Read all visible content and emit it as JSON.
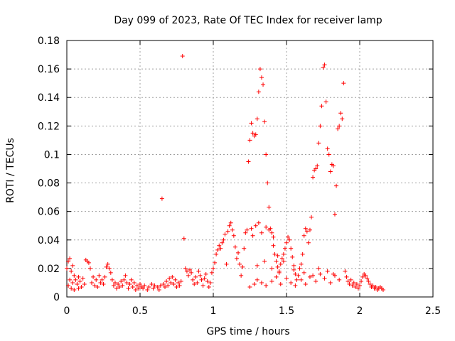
{
  "chart_data": {
    "type": "scatter",
    "title": "Day 099 of 2023, Rate Of TEC Index for receiver lamp",
    "xlabel": "GPS time / hours",
    "ylabel": "ROTI / TECUs",
    "xlim": [
      0,
      2.5
    ],
    "ylim": [
      0,
      0.18
    ],
    "x_ticks": [
      0,
      0.5,
      1,
      1.5,
      2,
      2.5
    ],
    "x_tick_labels": [
      "0",
      "0.5",
      "1",
      "1.5",
      "2",
      "2.5"
    ],
    "y_ticks": [
      0,
      0.02,
      0.04,
      0.06,
      0.08,
      0.1,
      0.12,
      0.14,
      0.16,
      0.18
    ],
    "y_tick_labels": [
      "0",
      "0.02",
      "0.04",
      "0.06",
      "0.08",
      "0.1",
      "0.12",
      "0.14",
      "0.16",
      "0.18"
    ],
    "grid": true,
    "marker": "+",
    "color": "#ff0000",
    "series": [
      {
        "name": "ROTI",
        "points": [
          [
            0.0,
            0.02
          ],
          [
            0.01,
            0.025
          ],
          [
            0.01,
            0.008
          ],
          [
            0.02,
            0.027
          ],
          [
            0.02,
            0.012
          ],
          [
            0.03,
            0.018
          ],
          [
            0.03,
            0.006
          ],
          [
            0.04,
            0.022
          ],
          [
            0.04,
            0.01
          ],
          [
            0.05,
            0.015
          ],
          [
            0.05,
            0.005
          ],
          [
            0.06,
            0.012
          ],
          [
            0.07,
            0.009
          ],
          [
            0.08,
            0.014
          ],
          [
            0.08,
            0.006
          ],
          [
            0.09,
            0.011
          ],
          [
            0.1,
            0.007
          ],
          [
            0.11,
            0.013
          ],
          [
            0.12,
            0.009
          ],
          [
            0.13,
            0.026
          ],
          [
            0.14,
            0.025
          ],
          [
            0.15,
            0.024
          ],
          [
            0.16,
            0.02
          ],
          [
            0.17,
            0.01
          ],
          [
            0.18,
            0.014
          ],
          [
            0.19,
            0.008
          ],
          [
            0.2,
            0.012
          ],
          [
            0.21,
            0.007
          ],
          [
            0.22,
            0.015
          ],
          [
            0.23,
            0.01
          ],
          [
            0.24,
            0.012
          ],
          [
            0.25,
            0.009
          ],
          [
            0.26,
            0.014
          ],
          [
            0.27,
            0.021
          ],
          [
            0.28,
            0.023
          ],
          [
            0.29,
            0.02
          ],
          [
            0.3,
            0.017
          ],
          [
            0.31,
            0.012
          ],
          [
            0.32,
            0.008
          ],
          [
            0.33,
            0.01
          ],
          [
            0.34,
            0.006
          ],
          [
            0.35,
            0.009
          ],
          [
            0.36,
            0.007
          ],
          [
            0.37,
            0.011
          ],
          [
            0.38,
            0.008
          ],
          [
            0.39,
            0.012
          ],
          [
            0.4,
            0.015
          ],
          [
            0.41,
            0.01
          ],
          [
            0.42,
            0.006
          ],
          [
            0.43,
            0.009
          ],
          [
            0.44,
            0.012
          ],
          [
            0.45,
            0.007
          ],
          [
            0.46,
            0.01
          ],
          [
            0.47,
            0.005
          ],
          [
            0.48,
            0.008
          ],
          [
            0.49,
            0.006
          ],
          [
            0.5,
            0.009
          ],
          [
            0.51,
            0.007
          ],
          [
            0.52,
            0.006
          ],
          [
            0.53,
            0.008
          ],
          [
            0.55,
            0.005
          ],
          [
            0.56,
            0.007
          ],
          [
            0.58,
            0.009
          ],
          [
            0.59,
            0.006
          ],
          [
            0.6,
            0.008
          ],
          [
            0.62,
            0.007
          ],
          [
            0.63,
            0.005
          ],
          [
            0.64,
            0.008
          ],
          [
            0.65,
            0.069
          ],
          [
            0.66,
            0.009
          ],
          [
            0.67,
            0.007
          ],
          [
            0.68,
            0.011
          ],
          [
            0.69,
            0.008
          ],
          [
            0.7,
            0.013
          ],
          [
            0.71,
            0.01
          ],
          [
            0.72,
            0.014
          ],
          [
            0.73,
            0.009
          ],
          [
            0.74,
            0.012
          ],
          [
            0.75,
            0.007
          ],
          [
            0.76,
            0.01
          ],
          [
            0.77,
            0.008
          ],
          [
            0.78,
            0.011
          ],
          [
            0.79,
            0.169
          ],
          [
            0.8,
            0.041
          ],
          [
            0.81,
            0.02
          ],
          [
            0.82,
            0.018
          ],
          [
            0.83,
            0.015
          ],
          [
            0.84,
            0.019
          ],
          [
            0.85,
            0.017
          ],
          [
            0.86,
            0.012
          ],
          [
            0.87,
            0.009
          ],
          [
            0.88,
            0.014
          ],
          [
            0.89,
            0.01
          ],
          [
            0.9,
            0.018
          ],
          [
            0.91,
            0.015
          ],
          [
            0.92,
            0.012
          ],
          [
            0.93,
            0.008
          ],
          [
            0.94,
            0.013
          ],
          [
            0.95,
            0.016
          ],
          [
            0.96,
            0.011
          ],
          [
            0.97,
            0.007
          ],
          [
            0.98,
            0.01
          ],
          [
            0.99,
            0.017
          ],
          [
            1.0,
            0.02
          ],
          [
            1.01,
            0.024
          ],
          [
            1.02,
            0.03
          ],
          [
            1.03,
            0.033
          ],
          [
            1.04,
            0.036
          ],
          [
            1.05,
            0.034
          ],
          [
            1.06,
            0.038
          ],
          [
            1.07,
            0.04
          ],
          [
            1.08,
            0.044
          ],
          [
            1.09,
            0.023
          ],
          [
            1.1,
            0.046
          ],
          [
            1.11,
            0.05
          ],
          [
            1.12,
            0.052
          ],
          [
            1.13,
            0.047
          ],
          [
            1.14,
            0.043
          ],
          [
            1.15,
            0.035
          ],
          [
            1.16,
            0.027
          ],
          [
            1.17,
            0.031
          ],
          [
            1.18,
            0.023
          ],
          [
            1.19,
            0.015
          ],
          [
            1.2,
            0.021
          ],
          [
            1.21,
            0.034
          ],
          [
            1.22,
            0.045
          ],
          [
            1.23,
            0.047
          ],
          [
            1.24,
            0.095
          ],
          [
            1.25,
            0.11
          ],
          [
            1.26,
            0.122
          ],
          [
            1.27,
            0.115
          ],
          [
            1.28,
            0.113
          ],
          [
            1.29,
            0.114
          ],
          [
            1.3,
            0.125
          ],
          [
            1.31,
            0.144
          ],
          [
            1.32,
            0.16
          ],
          [
            1.33,
            0.154
          ],
          [
            1.34,
            0.149
          ],
          [
            1.35,
            0.123
          ],
          [
            1.36,
            0.1
          ],
          [
            1.37,
            0.08
          ],
          [
            1.38,
            0.063
          ],
          [
            1.39,
            0.048
          ],
          [
            1.4,
            0.045
          ],
          [
            1.41,
            0.036
          ],
          [
            1.42,
            0.03
          ],
          [
            1.43,
            0.025
          ],
          [
            1.44,
            0.021
          ],
          [
            1.45,
            0.018
          ],
          [
            1.46,
            0.023
          ],
          [
            1.47,
            0.027
          ],
          [
            1.48,
            0.03
          ],
          [
            1.49,
            0.034
          ],
          [
            1.5,
            0.038
          ],
          [
            1.51,
            0.042
          ],
          [
            1.52,
            0.04
          ],
          [
            1.53,
            0.034
          ],
          [
            1.54,
            0.028
          ],
          [
            1.55,
            0.022
          ],
          [
            1.56,
            0.016
          ],
          [
            1.57,
            0.012
          ],
          [
            1.58,
            0.015
          ],
          [
            1.59,
            0.02
          ],
          [
            1.6,
            0.023
          ],
          [
            1.61,
            0.03
          ],
          [
            1.62,
            0.043
          ],
          [
            1.63,
            0.048
          ],
          [
            1.64,
            0.046
          ],
          [
            1.65,
            0.038
          ],
          [
            1.66,
            0.047
          ],
          [
            1.67,
            0.056
          ],
          [
            1.68,
            0.084
          ],
          [
            1.69,
            0.089
          ],
          [
            1.7,
            0.09
          ],
          [
            1.71,
            0.092
          ],
          [
            1.72,
            0.108
          ],
          [
            1.73,
            0.12
          ],
          [
            1.74,
            0.134
          ],
          [
            1.75,
            0.161
          ],
          [
            1.76,
            0.163
          ],
          [
            1.77,
            0.137
          ],
          [
            1.78,
            0.104
          ],
          [
            1.79,
            0.1
          ],
          [
            1.8,
            0.088
          ],
          [
            1.81,
            0.093
          ],
          [
            1.82,
            0.092
          ],
          [
            1.83,
            0.058
          ],
          [
            1.84,
            0.078
          ],
          [
            1.85,
            0.118
          ],
          [
            1.86,
            0.12
          ],
          [
            1.87,
            0.129
          ],
          [
            1.88,
            0.125
          ],
          [
            1.89,
            0.15
          ],
          [
            1.9,
            0.018
          ],
          [
            1.91,
            0.014
          ],
          [
            1.92,
            0.011
          ],
          [
            1.93,
            0.009
          ],
          [
            1.94,
            0.012
          ],
          [
            1.95,
            0.008
          ],
          [
            1.96,
            0.01
          ],
          [
            1.97,
            0.007
          ],
          [
            1.98,
            0.009
          ],
          [
            1.99,
            0.006
          ],
          [
            2.0,
            0.008
          ],
          [
            2.01,
            0.011
          ],
          [
            2.02,
            0.014
          ],
          [
            2.03,
            0.016
          ],
          [
            2.04,
            0.015
          ],
          [
            2.05,
            0.013
          ],
          [
            2.06,
            0.011
          ],
          [
            2.07,
            0.009
          ],
          [
            2.08,
            0.007
          ],
          [
            2.09,
            0.008
          ],
          [
            2.1,
            0.006
          ],
          [
            2.11,
            0.007
          ],
          [
            2.12,
            0.005
          ],
          [
            2.13,
            0.006
          ],
          [
            2.14,
            0.007
          ],
          [
            2.15,
            0.006
          ],
          [
            2.16,
            0.005
          ],
          [
            1.25,
            0.007
          ],
          [
            1.28,
            0.009
          ],
          [
            1.3,
            0.012
          ],
          [
            1.33,
            0.01
          ],
          [
            1.36,
            0.008
          ],
          [
            1.4,
            0.011
          ],
          [
            1.43,
            0.014
          ],
          [
            1.46,
            0.009
          ],
          [
            1.5,
            0.013
          ],
          [
            1.53,
            0.01
          ],
          [
            1.56,
            0.008
          ],
          [
            1.6,
            0.012
          ],
          [
            1.63,
            0.009
          ],
          [
            1.66,
            0.014
          ],
          [
            1.7,
            0.011
          ],
          [
            1.73,
            0.016
          ],
          [
            1.76,
            0.013
          ],
          [
            1.8,
            0.01
          ],
          [
            1.83,
            0.015
          ],
          [
            1.86,
            0.012
          ],
          [
            1.26,
            0.048
          ],
          [
            1.27,
            0.043
          ],
          [
            1.29,
            0.05
          ],
          [
            1.31,
            0.052
          ],
          [
            1.33,
            0.045
          ],
          [
            1.36,
            0.049
          ],
          [
            1.38,
            0.047
          ],
          [
            1.41,
            0.042
          ],
          [
            1.44,
            0.029
          ],
          [
            1.48,
            0.025
          ],
          [
            1.3,
            0.022
          ],
          [
            1.35,
            0.025
          ],
          [
            1.4,
            0.02
          ],
          [
            1.45,
            0.017
          ],
          [
            1.55,
            0.019
          ],
          [
            1.62,
            0.017
          ],
          [
            1.68,
            0.015
          ],
          [
            1.72,
            0.02
          ],
          [
            1.78,
            0.018
          ],
          [
            1.82,
            0.016
          ]
        ]
      }
    ]
  }
}
